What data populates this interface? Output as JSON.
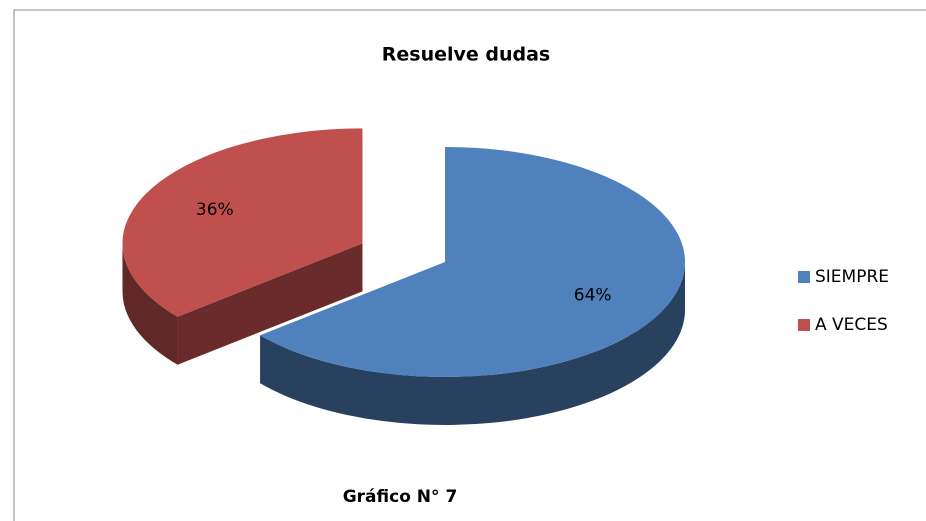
{
  "chart_data": {
    "type": "pie",
    "title": "Resuelve dudas",
    "categories": [
      "SIEMPRE",
      "A VECES"
    ],
    "values": [
      64,
      36
    ],
    "value_labels": [
      "64%",
      "36%"
    ],
    "colors": [
      "#4f81bd",
      "#c0504d"
    ],
    "exploded": [
      false,
      true
    ],
    "three_d": true,
    "legend": "right",
    "caption": "Gráfico N° 7"
  }
}
